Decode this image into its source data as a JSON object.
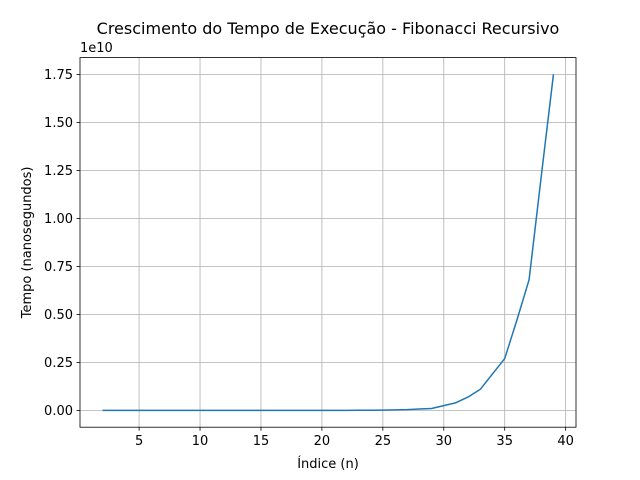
{
  "chart_data": {
    "type": "line",
    "title": "Crescimento do Tempo de Execução - Fibonacci Recursivo",
    "xlabel": "Índice (n)",
    "ylabel": "Tempo (nanosegundos)",
    "y_offset_text": "1e10",
    "y_scale": 10000000000,
    "xlim": [
      0.15,
      40.85
    ],
    "ylim": [
      -0.0875,
      1.8375
    ],
    "xticks": [
      5,
      10,
      15,
      20,
      25,
      30,
      35,
      40
    ],
    "xtick_labels": [
      "5",
      "10",
      "15",
      "20",
      "25",
      "30",
      "35",
      "40"
    ],
    "yticks": [
      0.0,
      0.25,
      0.5,
      0.75,
      1.0,
      1.25,
      1.5,
      1.75
    ],
    "ytick_labels": [
      "0.00",
      "0.25",
      "0.50",
      "0.75",
      "1.00",
      "1.25",
      "1.50",
      "1.75"
    ],
    "grid": true,
    "line_color": "#1f77b4",
    "series": [
      {
        "x": [
          2,
          3,
          4,
          5,
          6,
          7,
          8,
          9,
          10,
          11,
          12,
          13,
          14,
          15,
          16,
          17,
          18,
          19,
          20,
          21,
          22,
          23,
          24,
          25,
          26,
          27,
          28,
          29,
          30,
          31,
          32,
          33,
          34,
          35,
          36,
          37,
          38,
          39
        ],
        "values": [
          0,
          0,
          0,
          0,
          0,
          0,
          0,
          0,
          0,
          0,
          0,
          0,
          0,
          0,
          0,
          0,
          0,
          0,
          0.0001,
          0.0002,
          0.0003,
          0.0005,
          0.001,
          0.0015,
          0.0025,
          0.004,
          0.007,
          0.01,
          0.025,
          0.04,
          0.07,
          0.11,
          0.19,
          0.27,
          0.47,
          0.68,
          1.22,
          1.75
        ]
      }
    ]
  }
}
